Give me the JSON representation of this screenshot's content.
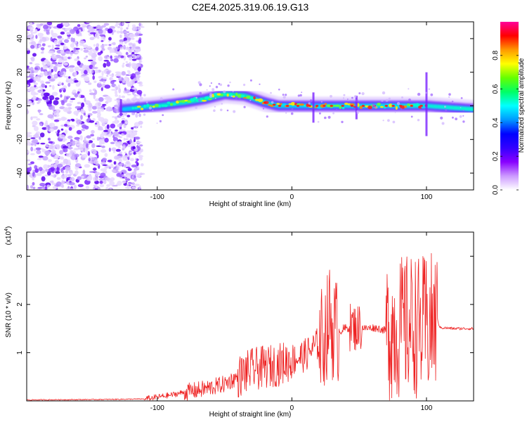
{
  "title": "C2E4.2025.319.06.19.G13",
  "chart_data": [
    {
      "type": "heatmap",
      "xlabel": "Height of straight line (km)",
      "ylabel": "Frequency (Hz)",
      "xlim": [
        -197,
        135
      ],
      "ylim": [
        -50,
        50
      ],
      "x_ticks": [
        -100,
        0,
        100
      ],
      "y_ticks": [
        -40,
        -20,
        0,
        20,
        40
      ],
      "colorbar": {
        "label": "Normalized spectral amplitude",
        "range": [
          0,
          1
        ],
        "ticks": [
          0.0,
          0.2,
          0.4,
          0.6,
          0.8
        ],
        "colors": [
          "#ffffff",
          "#cc99ff",
          "#8800ff",
          "#3300ff",
          "#0000ff",
          "#0099ff",
          "#00ffff",
          "#00ff66",
          "#66ff00",
          "#ffff00",
          "#ff9900",
          "#ff0000",
          "#ff0099"
        ]
      },
      "ridge_frequency": [
        {
          "x": -125,
          "y": -2
        },
        {
          "x": -100,
          "y": 0
        },
        {
          "x": -80,
          "y": 2
        },
        {
          "x": -65,
          "y": 4
        },
        {
          "x": -50,
          "y": 7
        },
        {
          "x": -35,
          "y": 6
        },
        {
          "x": -20,
          "y": 2
        },
        {
          "x": -10,
          "y": 0
        },
        {
          "x": 0,
          "y": 0
        },
        {
          "x": 20,
          "y": 0
        },
        {
          "x": 50,
          "y": 0
        },
        {
          "x": 80,
          "y": 0
        },
        {
          "x": 100,
          "y": 0
        },
        {
          "x": 135,
          "y": -2
        }
      ]
    },
    {
      "type": "line",
      "xlabel": "Height of straight line (km)",
      "ylabel": "SNR (10 * v/v)",
      "y_multiplier": "(x10",
      "y_multiplier_exp": "4",
      "y_multiplier_close": ")",
      "xlim": [
        -197,
        135
      ],
      "ylim": [
        0,
        3.5
      ],
      "x_ticks": [
        -100,
        0,
        100
      ],
      "y_ticks": [
        1,
        2,
        3
      ],
      "color": "#ff0000",
      "series": [
        {
          "x": [
            -197,
            -140,
            -110,
            -100,
            -90,
            -80,
            -70,
            -60,
            -50,
            -40,
            -30,
            -20,
            -10,
            0,
            10,
            20,
            25,
            28,
            30,
            35,
            40,
            45,
            48,
            50,
            55,
            60,
            65,
            70,
            75,
            80,
            85,
            90,
            95,
            100,
            105,
            108,
            110,
            120,
            135
          ],
          "y": [
            0.02,
            0.03,
            0.04,
            0.08,
            0.12,
            0.18,
            0.22,
            0.28,
            0.35,
            0.5,
            0.65,
            0.7,
            0.75,
            0.85,
            0.95,
            1.2,
            1.4,
            1.75,
            1.5,
            1.45,
            1.5,
            1.55,
            1.5,
            1.55,
            1.5,
            1.52,
            1.5,
            1.45,
            1.5,
            1.5,
            1.55,
            1.6,
            1.5,
            1.55,
            1.6,
            1.7,
            1.52,
            1.5,
            1.5
          ]
        }
      ]
    }
  ]
}
